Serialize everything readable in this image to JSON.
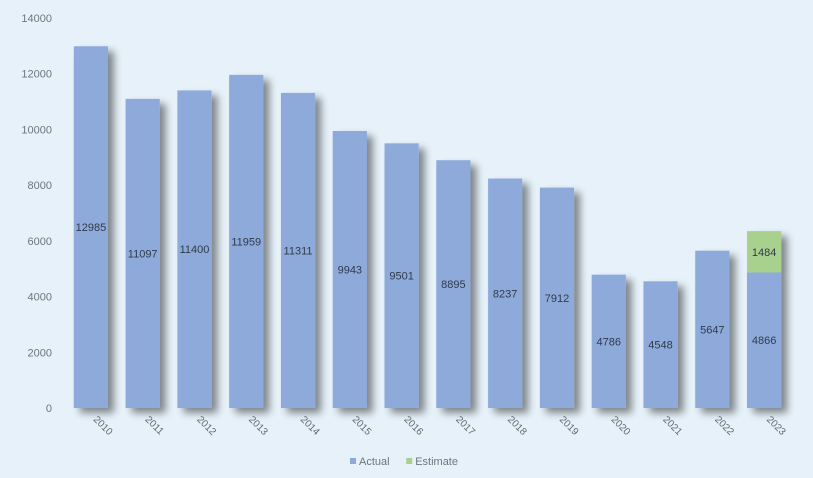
{
  "chart_data": {
    "type": "bar",
    "stacked": true,
    "categories": [
      "2010",
      "2011",
      "2012",
      "2013",
      "2014",
      "2015",
      "2016",
      "2017",
      "2018",
      "2019",
      "2020",
      "2021",
      "2022",
      "2023"
    ],
    "series": [
      {
        "name": "Actual",
        "color": "#8eaadb",
        "values": [
          12985,
          11097,
          11400,
          11959,
          11311,
          9943,
          9501,
          8895,
          8237,
          7912,
          4786,
          4548,
          5647,
          4866
        ]
      },
      {
        "name": "Estimate",
        "color": "#a9d18e",
        "values": [
          null,
          null,
          null,
          null,
          null,
          null,
          null,
          null,
          null,
          null,
          null,
          null,
          null,
          1484
        ]
      }
    ],
    "ylim": [
      0,
      14000
    ],
    "yticks": [
      0,
      2000,
      4000,
      6000,
      8000,
      10000,
      12000,
      14000
    ],
    "xlabel": "",
    "ylabel": "",
    "title": "",
    "grid": false,
    "legend_position": "bottom"
  }
}
